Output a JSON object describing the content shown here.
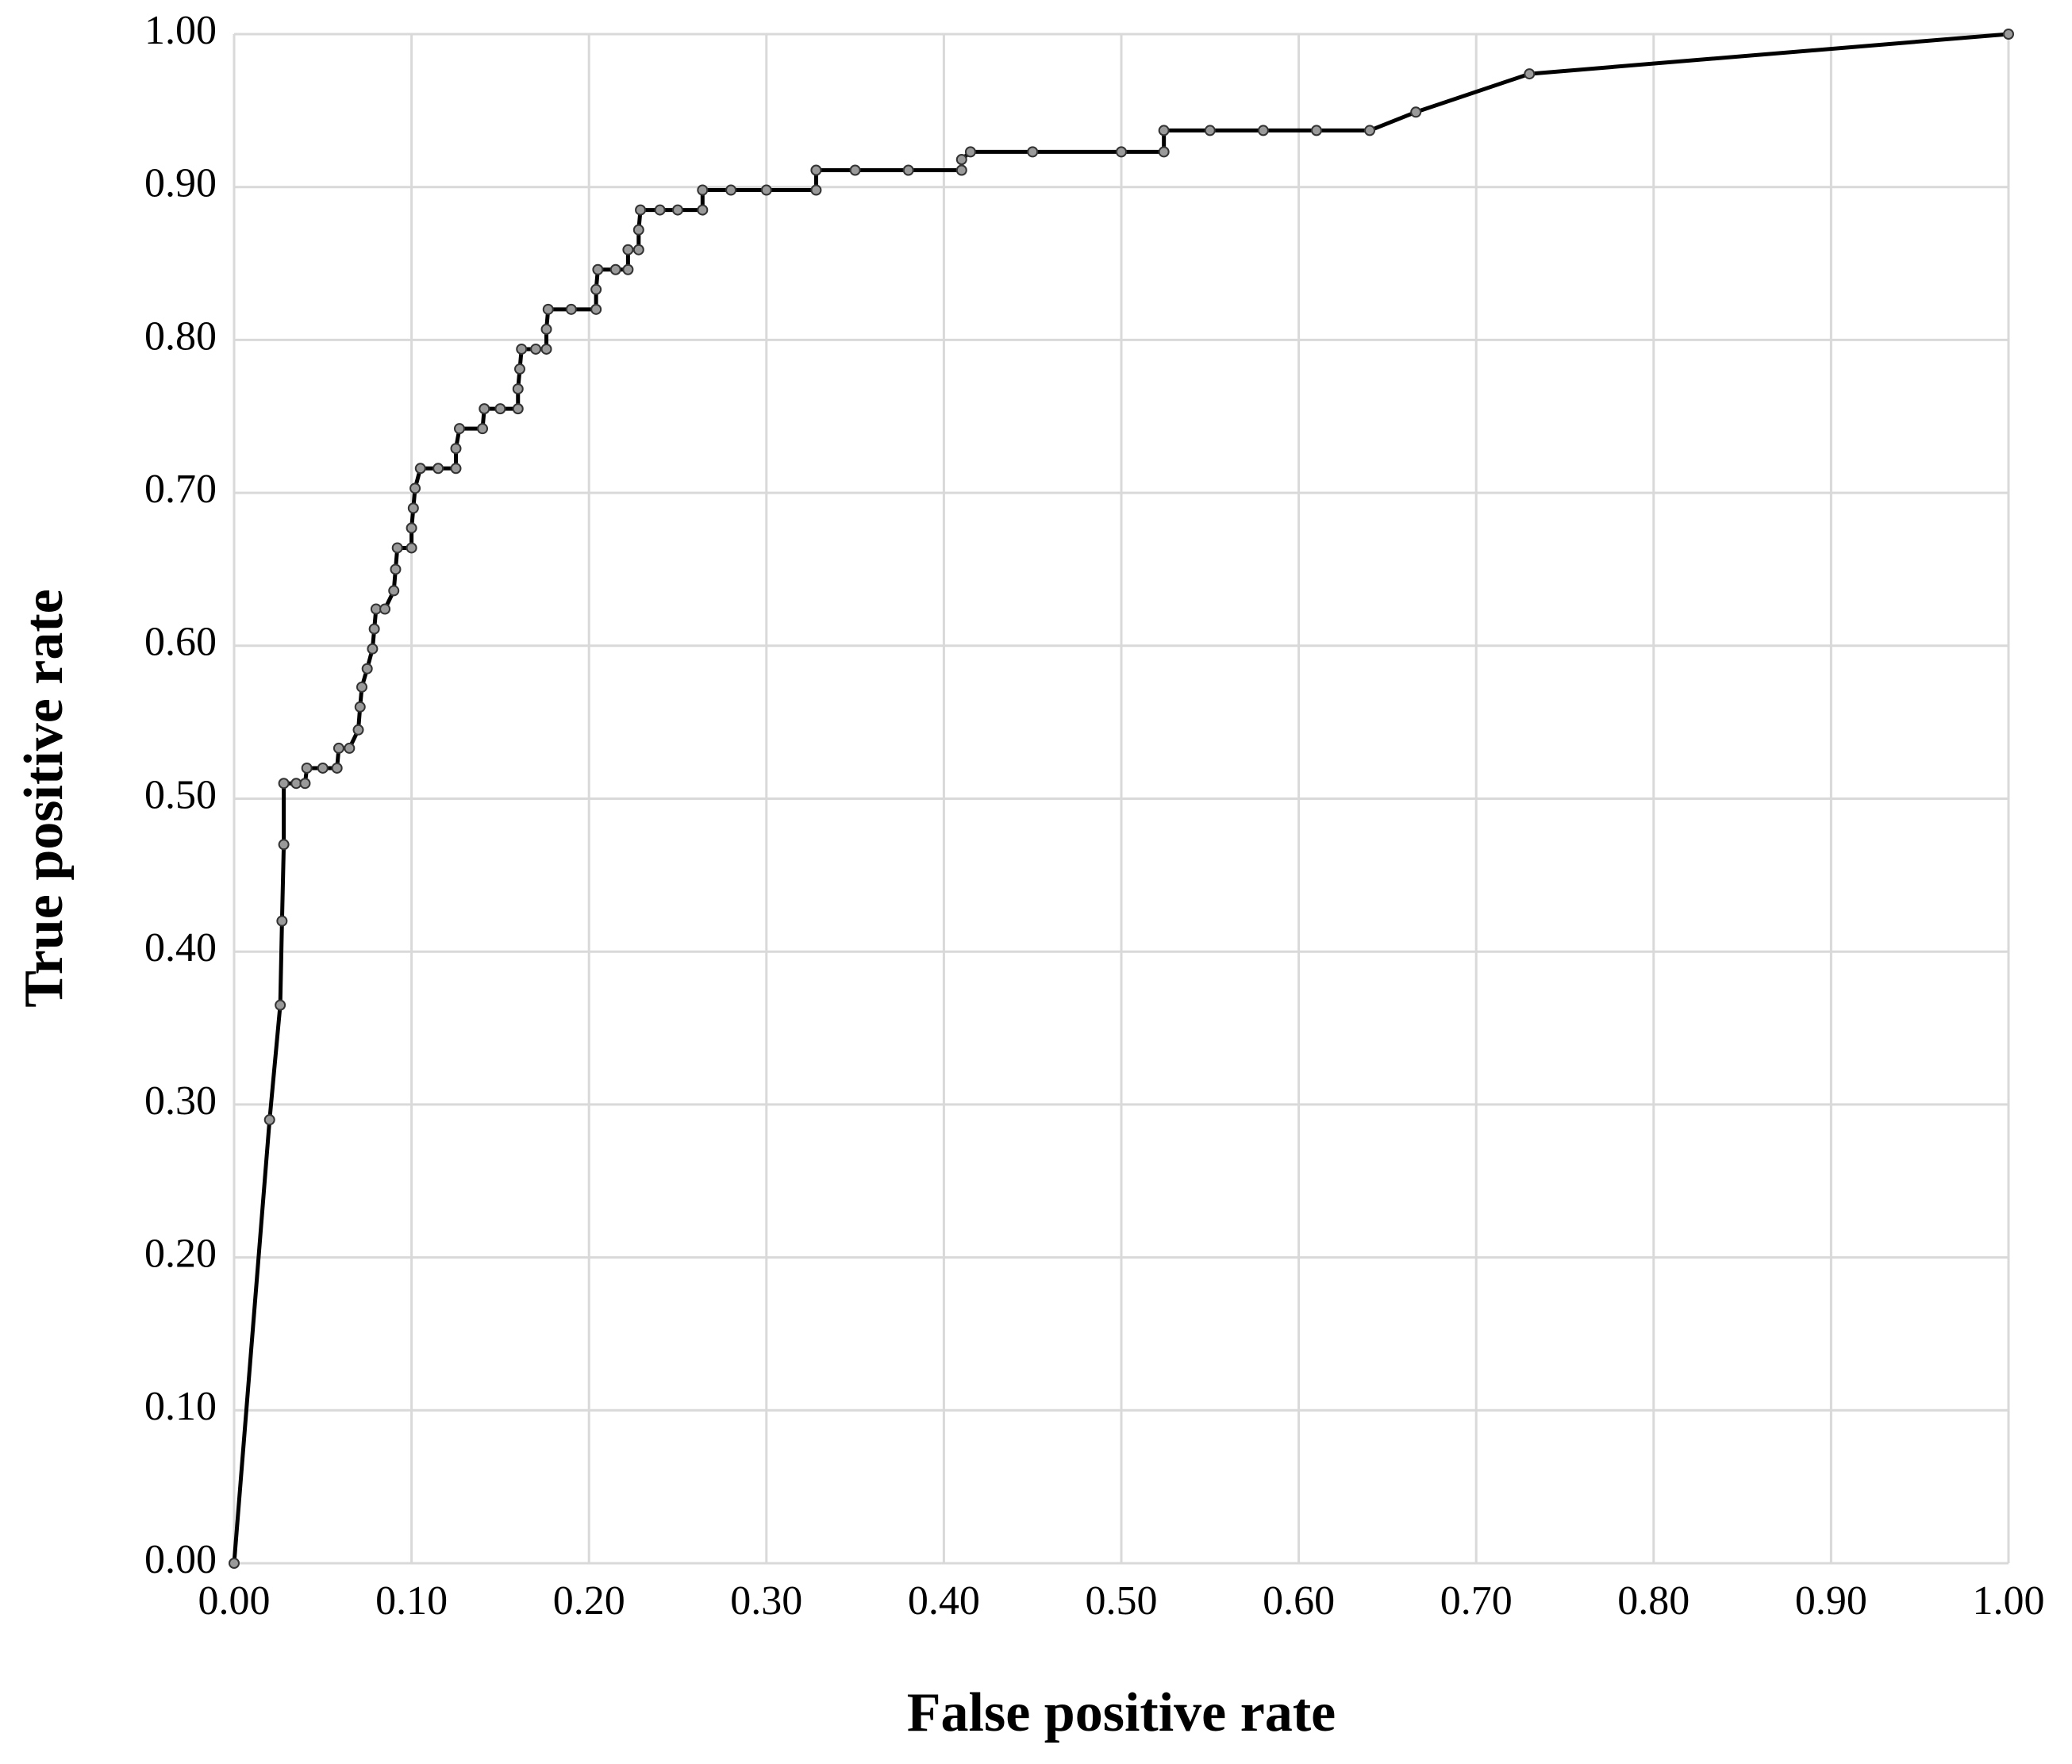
{
  "chart_data": {
    "type": "line",
    "xlabel": "False positive rate",
    "ylabel": "True positive rate",
    "xlim": [
      0,
      1
    ],
    "ylim": [
      0,
      1
    ],
    "xticks": [
      {
        "value": 0,
        "label": "0.00"
      },
      {
        "value": 0.1,
        "label": "0.10"
      },
      {
        "value": 0.2,
        "label": "0.20"
      },
      {
        "value": 0.3,
        "label": "0.30"
      },
      {
        "value": 0.4,
        "label": "0.40"
      },
      {
        "value": 0.5,
        "label": "0.50"
      },
      {
        "value": 0.6,
        "label": "0.60"
      },
      {
        "value": 0.7,
        "label": "0.70"
      },
      {
        "value": 0.8,
        "label": "0.80"
      },
      {
        "value": 0.9,
        "label": "0.90"
      },
      {
        "value": 1,
        "label": "1.00"
      }
    ],
    "yticks": [
      {
        "value": 0,
        "label": "0.00"
      },
      {
        "value": 0.1,
        "label": "0.10"
      },
      {
        "value": 0.2,
        "label": "0.20"
      },
      {
        "value": 0.3,
        "label": "0.30"
      },
      {
        "value": 0.4,
        "label": "0.40"
      },
      {
        "value": 0.5,
        "label": "0.50"
      },
      {
        "value": 0.6,
        "label": "0.60"
      },
      {
        "value": 0.7,
        "label": "0.70"
      },
      {
        "value": 0.8,
        "label": "0.80"
      },
      {
        "value": 0.9,
        "label": "0.90"
      },
      {
        "value": 1,
        "label": "1.00"
      }
    ],
    "grid": true,
    "color": "#000000",
    "marker_color": "#9a9a9a",
    "x": [
      0,
      0.02,
      0.026,
      0.027,
      0.028,
      0.028,
      0.035,
      0.04,
      0.041,
      0.05,
      0.058,
      0.059,
      0.065,
      0.07,
      0.071,
      0.072,
      0.075,
      0.078,
      0.079,
      0.08,
      0.085,
      0.09,
      0.091,
      0.092,
      0.1,
      0.1,
      0.101,
      0.102,
      0.105,
      0.115,
      0.125,
      0.125,
      0.127,
      0.14,
      0.141,
      0.15,
      0.16,
      0.16,
      0.161,
      0.162,
      0.17,
      0.176,
      0.176,
      0.177,
      0.19,
      0.204,
      0.204,
      0.205,
      0.215,
      0.222,
      0.222,
      0.228,
      0.228,
      0.229,
      0.24,
      0.25,
      0.264,
      0.264,
      0.28,
      0.3,
      0.328,
      0.328,
      0.35,
      0.38,
      0.41,
      0.41,
      0.415,
      0.45,
      0.5,
      0.524,
      0.524,
      0.55,
      0.58,
      0.61,
      0.64,
      0.666,
      0.73,
      1
    ],
    "values": [
      0,
      0.29,
      0.365,
      0.42,
      0.47,
      0.51,
      0.51,
      0.51,
      0.52,
      0.52,
      0.52,
      0.533,
      0.533,
      0.545,
      0.56,
      0.573,
      0.585,
      0.598,
      0.611,
      0.624,
      0.624,
      0.636,
      0.65,
      0.664,
      0.664,
      0.677,
      0.69,
      0.703,
      0.716,
      0.716,
      0.716,
      0.729,
      0.742,
      0.742,
      0.755,
      0.755,
      0.755,
      0.768,
      0.781,
      0.794,
      0.794,
      0.794,
      0.807,
      0.82,
      0.82,
      0.82,
      0.833,
      0.846,
      0.846,
      0.846,
      0.859,
      0.859,
      0.872,
      0.885,
      0.885,
      0.885,
      0.885,
      0.898,
      0.898,
      0.898,
      0.898,
      0.911,
      0.911,
      0.911,
      0.911,
      0.918,
      0.923,
      0.923,
      0.923,
      0.923,
      0.937,
      0.937,
      0.937,
      0.937,
      0.937,
      0.949,
      0.974,
      1
    ]
  }
}
